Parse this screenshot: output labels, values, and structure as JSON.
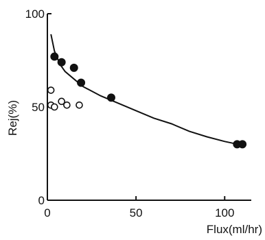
{
  "chart_data": {
    "type": "scatter",
    "xlabel": "Flux(ml/hr)",
    "ylabel": "Rej(%)",
    "xlim": [
      0,
      115
    ],
    "ylim": [
      0,
      100
    ],
    "x_ticks": [
      0,
      50,
      100
    ],
    "y_ticks": [
      0,
      50,
      100
    ],
    "x_tick_labels": [
      "0",
      "50",
      "100"
    ],
    "y_tick_labels": [
      "0",
      "50",
      "100"
    ],
    "grid": false,
    "colors": {
      "axis": "#111111",
      "marker": "#111111"
    },
    "series": [
      {
        "marker": "filled-circle",
        "points": [
          {
            "x": 4,
            "y": 77
          },
          {
            "x": 8,
            "y": 74
          },
          {
            "x": 15,
            "y": 71
          },
          {
            "x": 19,
            "y": 63
          },
          {
            "x": 36,
            "y": 55
          },
          {
            "x": 107,
            "y": 30
          },
          {
            "x": 110,
            "y": 30
          }
        ]
      },
      {
        "marker": "open-circle",
        "points": [
          {
            "x": 2,
            "y": 59
          },
          {
            "x": 2,
            "y": 51
          },
          {
            "x": 4,
            "y": 50
          },
          {
            "x": 8,
            "y": 53
          },
          {
            "x": 11,
            "y": 51
          },
          {
            "x": 18,
            "y": 51
          }
        ]
      }
    ],
    "curve": {
      "kind": "fit",
      "points": [
        {
          "x": 2,
          "y": 89
        },
        {
          "x": 4,
          "y": 80
        },
        {
          "x": 7,
          "y": 73
        },
        {
          "x": 10,
          "y": 69
        },
        {
          "x": 15,
          "y": 65
        },
        {
          "x": 20,
          "y": 61
        },
        {
          "x": 30,
          "y": 56
        },
        {
          "x": 40,
          "y": 52
        },
        {
          "x": 50,
          "y": 48
        },
        {
          "x": 60,
          "y": 44
        },
        {
          "x": 70,
          "y": 41
        },
        {
          "x": 80,
          "y": 37
        },
        {
          "x": 90,
          "y": 34
        },
        {
          "x": 100,
          "y": 31.5
        },
        {
          "x": 110,
          "y": 29.5
        }
      ]
    }
  }
}
